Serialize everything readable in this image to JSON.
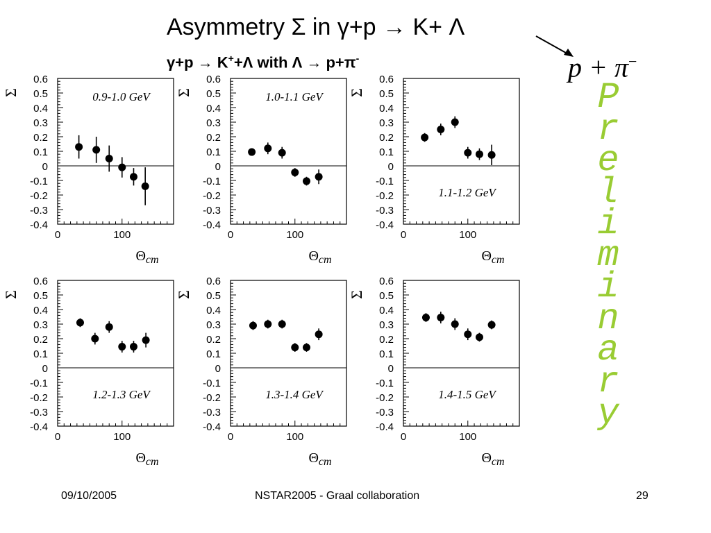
{
  "title": {
    "main": "Asymmetry Σ",
    "reaction": "in   γ+p → K+ Λ"
  },
  "subtitle": {
    "part1": "γ+p → K",
    "sup1": "+",
    "part2": "+Λ with Λ → p+π",
    "sup2": "-"
  },
  "decay_formula": {
    "base": "p + π",
    "sup": "−"
  },
  "preliminary": "Preliminary",
  "footer": {
    "date": "09/10/2005",
    "event": "NSTAR2005 - Graal collaboration",
    "page": "29"
  },
  "chart_data": [
    {
      "type": "scatter",
      "title": "0.9-1.0 GeV",
      "xlabel": "Θcm",
      "ylabel": "Σ",
      "xlim": [
        0,
        180
      ],
      "ylim": [
        -0.4,
        0.6
      ],
      "label_position": "top",
      "x": [
        33,
        60,
        80,
        100,
        118,
        136
      ],
      "y": [
        0.13,
        0.11,
        0.05,
        -0.01,
        -0.075,
        -0.14
      ],
      "err": [
        0.08,
        0.09,
        0.09,
        0.07,
        0.06,
        0.13
      ]
    },
    {
      "type": "scatter",
      "title": "1.0-1.1 GeV",
      "xlabel": "Θcm",
      "ylabel": "Σ",
      "xlim": [
        0,
        180
      ],
      "ylim": [
        -0.4,
        0.6
      ],
      "label_position": "top",
      "x": [
        33,
        58,
        80,
        100,
        118,
        137
      ],
      "y": [
        0.095,
        0.12,
        0.09,
        -0.045,
        -0.105,
        -0.075
      ],
      "err": [
        0.02,
        0.04,
        0.04,
        0.03,
        0.03,
        0.05
      ]
    },
    {
      "type": "scatter",
      "title": "1.1-1.2 GeV",
      "xlabel": "Θcm",
      "ylabel": "Σ",
      "xlim": [
        0,
        180
      ],
      "ylim": [
        -0.4,
        0.6
      ],
      "label_position": "bottom",
      "x": [
        33,
        58,
        80,
        100,
        118,
        137
      ],
      "y": [
        0.195,
        0.25,
        0.3,
        0.09,
        0.08,
        0.075
      ],
      "err": [
        0.03,
        0.04,
        0.04,
        0.04,
        0.04,
        0.07
      ]
    },
    {
      "type": "scatter",
      "title": "1.2-1.3 GeV",
      "xlabel": "Θcm",
      "ylabel": "Σ",
      "xlim": [
        0,
        180
      ],
      "ylim": [
        -0.4,
        0.6
      ],
      "label_position": "bottom",
      "x": [
        35,
        58,
        80,
        100,
        118,
        137
      ],
      "y": [
        0.31,
        0.2,
        0.28,
        0.145,
        0.145,
        0.19
      ],
      "err": [
        0.03,
        0.04,
        0.04,
        0.04,
        0.04,
        0.05
      ]
    },
    {
      "type": "scatter",
      "title": "1.3-1.4 GeV",
      "xlabel": "Θcm",
      "ylabel": "Σ",
      "xlim": [
        0,
        180
      ],
      "ylim": [
        -0.4,
        0.6
      ],
      "label_position": "bottom",
      "x": [
        35,
        58,
        80,
        100,
        118,
        137
      ],
      "y": [
        0.29,
        0.3,
        0.3,
        0.14,
        0.14,
        0.23
      ],
      "err": [
        0.03,
        0.03,
        0.03,
        0.03,
        0.03,
        0.04
      ]
    },
    {
      "type": "scatter",
      "title": "1.4-1.5 GeV",
      "xlabel": "Θcm",
      "ylabel": "Σ",
      "xlim": [
        0,
        180
      ],
      "ylim": [
        -0.4,
        0.6
      ],
      "label_position": "bottom",
      "x": [
        35,
        58,
        80,
        100,
        118,
        137
      ],
      "y": [
        0.345,
        0.345,
        0.3,
        0.23,
        0.21,
        0.295
      ],
      "err": [
        0.03,
        0.04,
        0.04,
        0.04,
        0.03,
        0.03
      ]
    }
  ]
}
